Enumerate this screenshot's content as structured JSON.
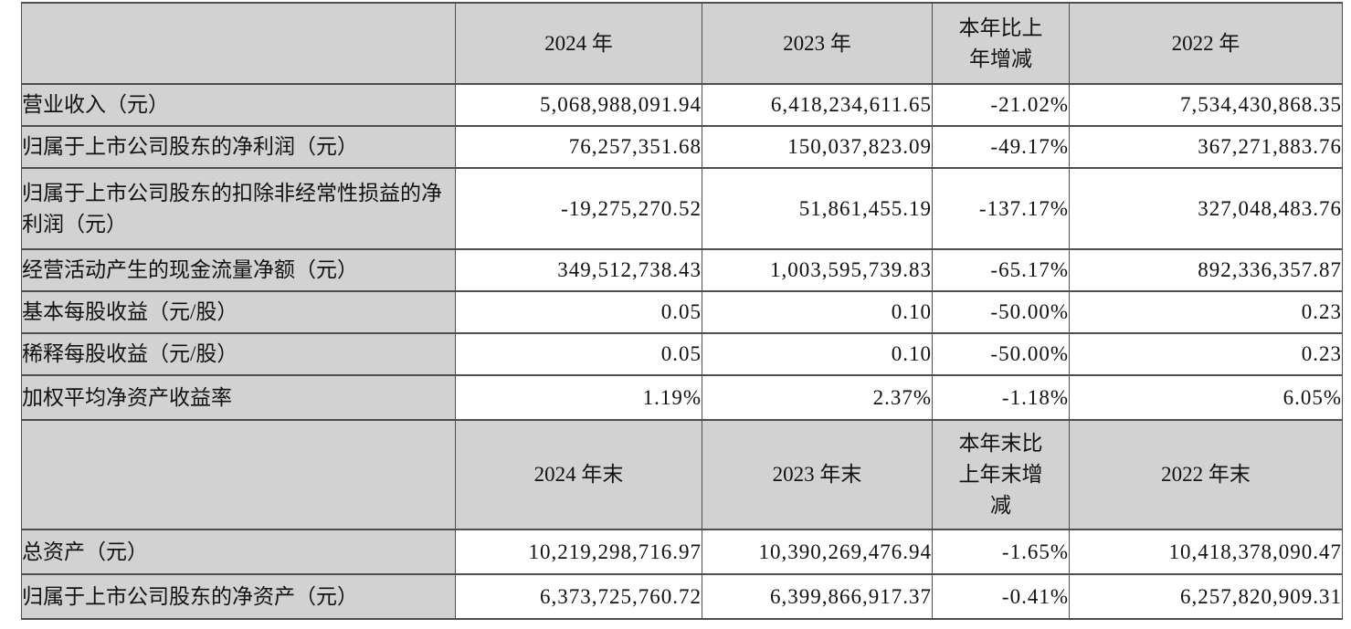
{
  "colors": {
    "header_bg": "#d2d2d2",
    "label_bg": "#d2d2d2",
    "cell_bg": "#ffffff",
    "border": "#4d4d4d",
    "text": "#111111"
  },
  "sections": [
    {
      "headers": [
        "",
        "2024 年",
        "2023 年",
        "本年比上\n年增减",
        "2022 年"
      ],
      "rows": [
        {
          "label": "营业收入（元）",
          "values": [
            "5,068,988,091.94",
            "6,418,234,611.65",
            "-21.02%",
            "7,534,430,868.35"
          ]
        },
        {
          "label": "归属于上市公司股东的净利润（元）",
          "values": [
            "76,257,351.68",
            "150,037,823.09",
            "-49.17%",
            "367,271,883.76"
          ]
        },
        {
          "label": "归属于上市公司股东的扣除非经常性损益的净利润（元）",
          "values": [
            "-19,275,270.52",
            "51,861,455.19",
            "-137.17%",
            "327,048,483.76"
          ]
        },
        {
          "label": "经营活动产生的现金流量净额（元）",
          "values": [
            "349,512,738.43",
            "1,003,595,739.83",
            "-65.17%",
            "892,336,357.87"
          ]
        },
        {
          "label": "基本每股收益（元/股）",
          "values": [
            "0.05",
            "0.10",
            "-50.00%",
            "0.23"
          ]
        },
        {
          "label": "稀释每股收益（元/股）",
          "values": [
            "0.05",
            "0.10",
            "-50.00%",
            "0.23"
          ]
        },
        {
          "label": "加权平均净资产收益率",
          "values": [
            "1.19%",
            "2.37%",
            "-1.18%",
            "6.05%"
          ]
        }
      ]
    },
    {
      "headers": [
        "",
        "2024 年末",
        "2023 年末",
        "本年末比\n上年末增\n减",
        "2022 年末"
      ],
      "rows": [
        {
          "label": "总资产（元）",
          "values": [
            "10,219,298,716.97",
            "10,390,269,476.94",
            "-1.65%",
            "10,418,378,090.47"
          ]
        },
        {
          "label": "归属于上市公司股东的净资产（元）",
          "values": [
            "6,373,725,760.72",
            "6,399,866,917.37",
            "-0.41%",
            "6,257,820,909.31"
          ]
        }
      ]
    }
  ]
}
